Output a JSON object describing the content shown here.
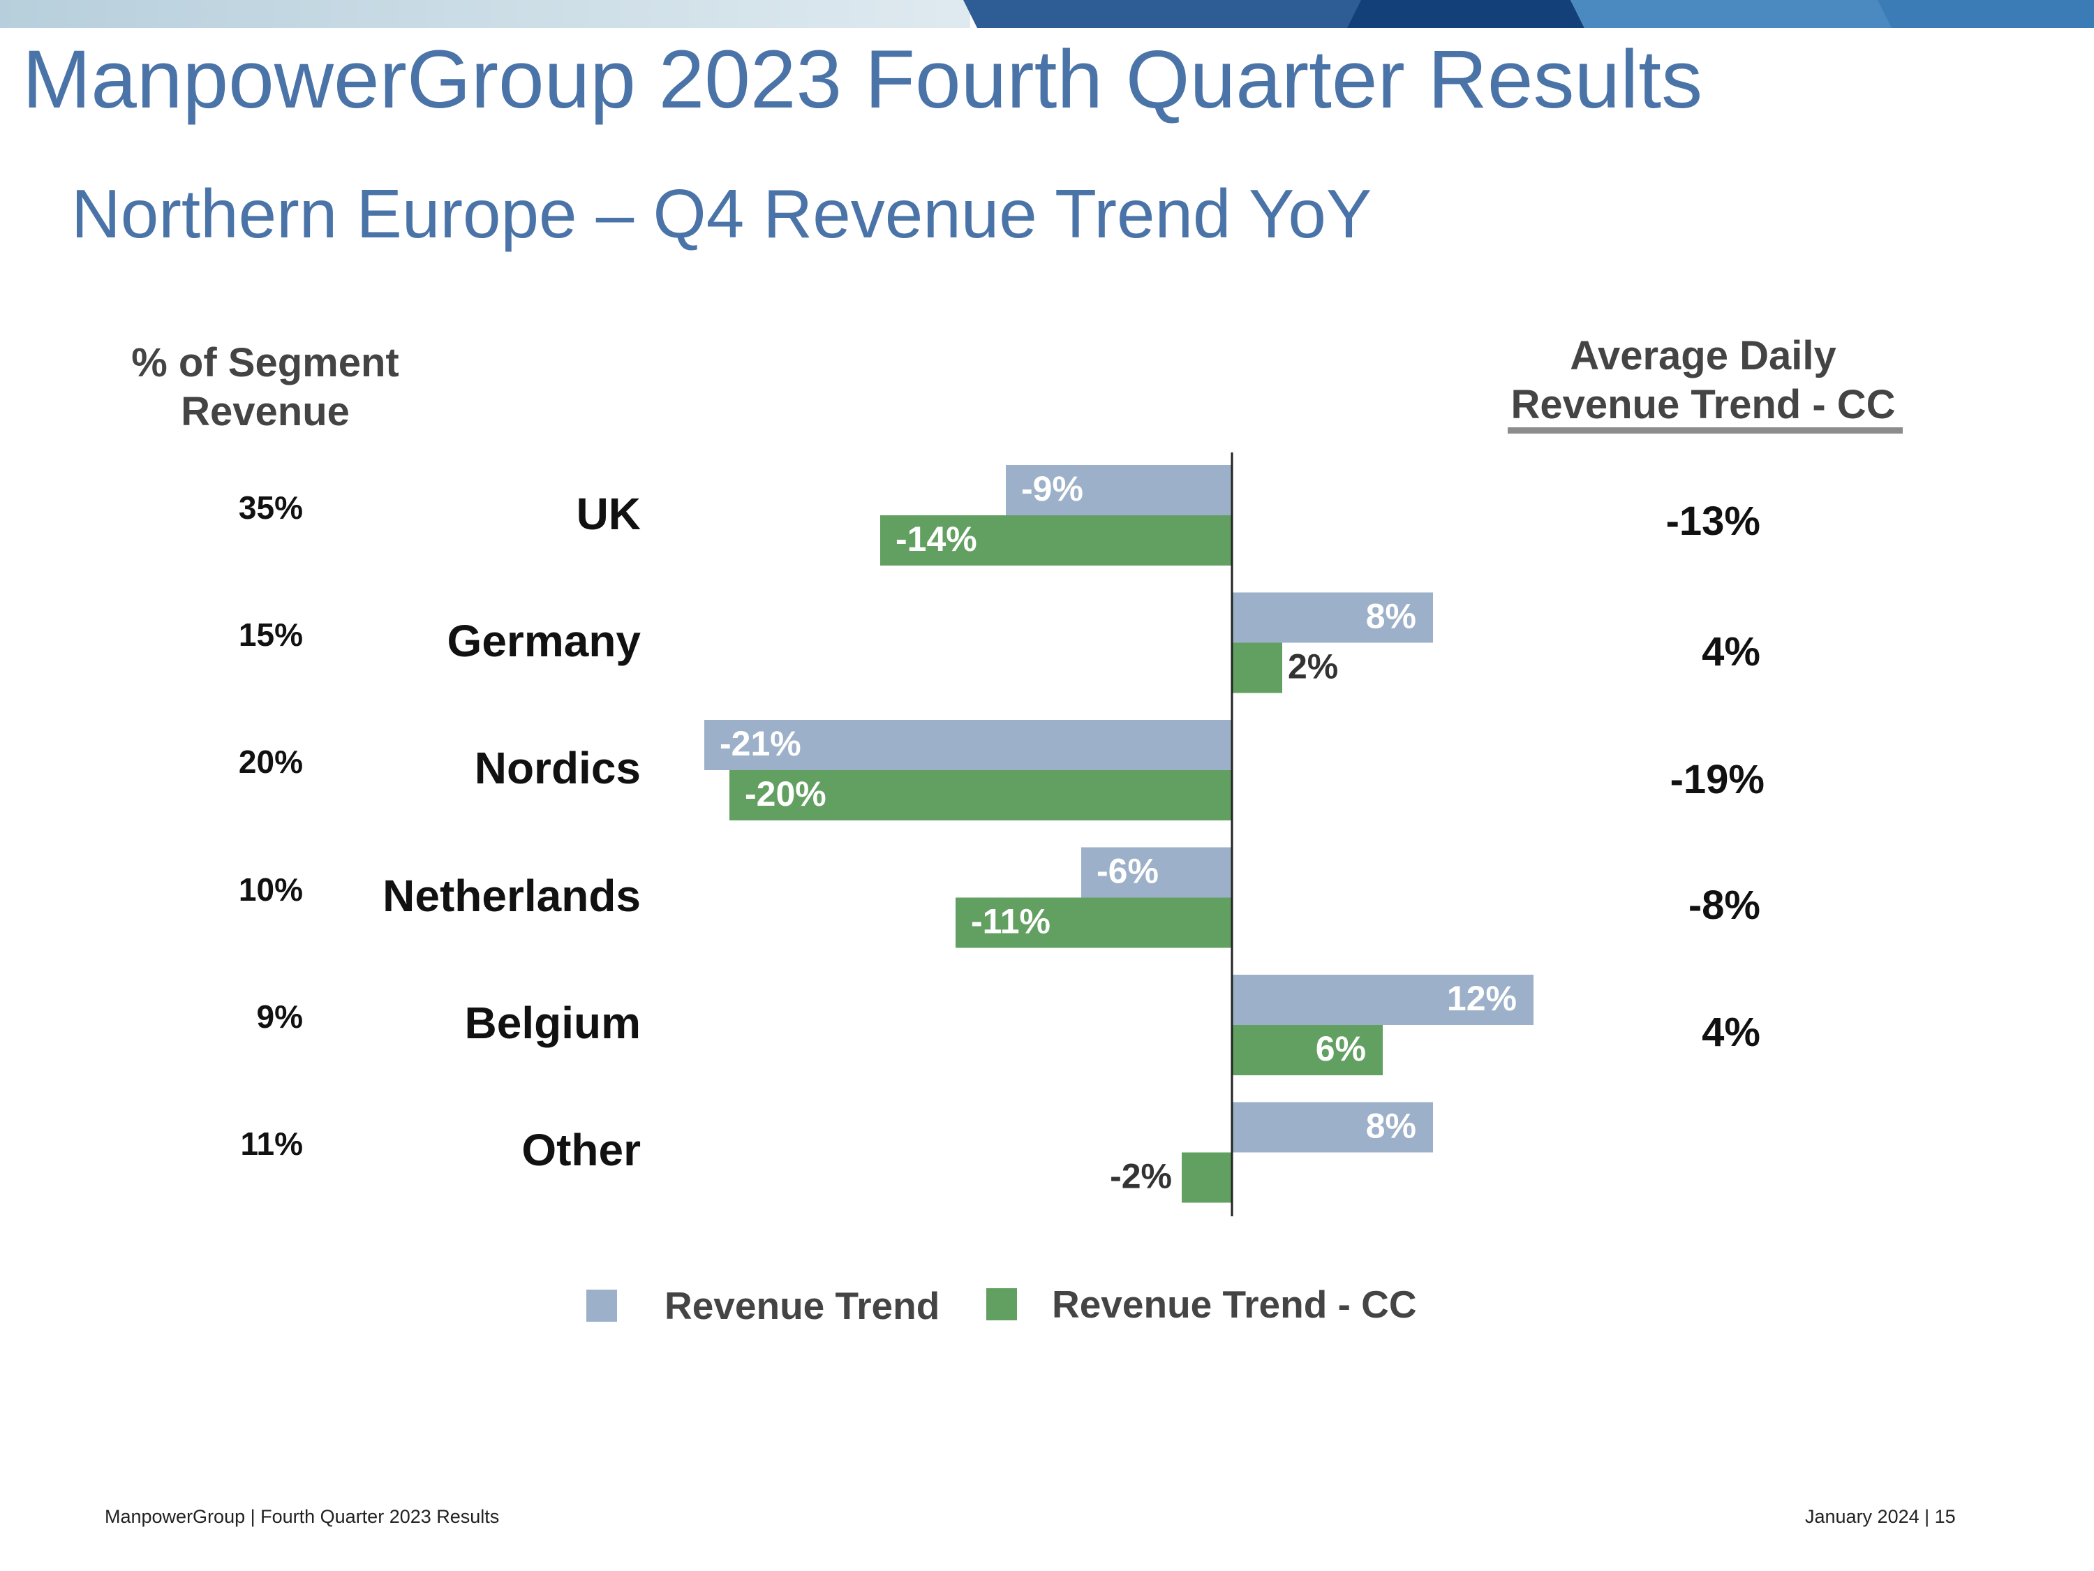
{
  "slide": {
    "title": "ManpowerGroup 2023 Fourth Quarter Results",
    "subtitle": "Northern Europe – Q4 Revenue Trend YoY",
    "left_header": [
      "% of Segment",
      "Revenue"
    ],
    "right_header": [
      "Average Daily",
      "Revenue Trend - CC"
    ],
    "footer_left": "ManpowerGroup  |  Fourth Quarter 2023 Results",
    "footer_right": "January 2024   |   15",
    "colors": {
      "accent": "#4a73a8",
      "revenue_trend": "#9cb1c9",
      "revenue_trend_cc": "#62a062"
    }
  },
  "rows": [
    {
      "country": "UK",
      "share": "35%",
      "adr_cc": "-13%"
    },
    {
      "country": "Germany",
      "share": "15%",
      "adr_cc": "4%"
    },
    {
      "country": "Nordics",
      "share": "20%",
      "adr_cc": "-19%"
    },
    {
      "country": "Netherlands",
      "share": "10%",
      "adr_cc": "-8%"
    },
    {
      "country": "Belgium",
      "share": "9%",
      "adr_cc": "4%"
    },
    {
      "country": "Other",
      "share": "11%",
      "adr_cc": ""
    }
  ],
  "chart_data": {
    "type": "bar",
    "orientation": "horizontal",
    "title": "Northern Europe – Q4 Revenue Trend YoY",
    "categories": [
      "UK",
      "Germany",
      "Nordics",
      "Netherlands",
      "Belgium",
      "Other"
    ],
    "series": [
      {
        "name": "Revenue Trend",
        "values": [
          -9,
          8,
          -21,
          -6,
          12,
          8
        ],
        "labels": [
          "-9%",
          "8%",
          "-21%",
          "-6%",
          "12%",
          "8%"
        ]
      },
      {
        "name": "Revenue Trend - CC",
        "values": [
          -14,
          2,
          -20,
          -11,
          6,
          -2
        ],
        "labels": [
          "-14%",
          "2%",
          "-20%",
          "-11%",
          "6%",
          "-2%"
        ]
      }
    ],
    "xlim": [
      -21,
      13
    ],
    "grid": false,
    "legend": "bottom"
  }
}
